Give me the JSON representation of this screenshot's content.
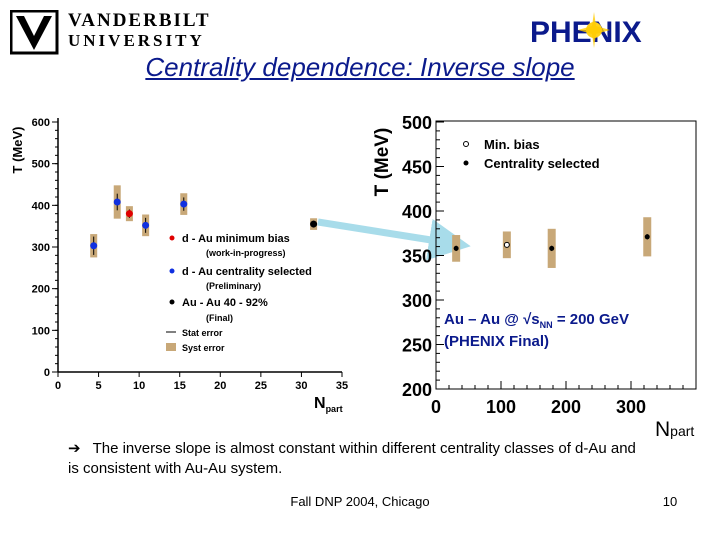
{
  "header": {
    "university_line1": "VANDERBILT",
    "university_line2": "UNIVERSITY",
    "phenix_logo": "PHENIX",
    "title": "Centrality dependence: Inverse slope"
  },
  "colors": {
    "title": "#0b1a8c",
    "dau_minbias": "#e00000",
    "dau_centrality": "#1030e0",
    "auau": "#000000",
    "syst_error": "#c8a878",
    "arrow": "#a8dcea"
  },
  "chart_data": [
    {
      "type": "scatter",
      "ylabel": "T (MeV)",
      "xlabel": "N",
      "xlabel_sub": "part",
      "xlim": [
        0,
        35
      ],
      "ylim": [
        0,
        600
      ],
      "xticks": [
        0,
        5,
        10,
        15,
        20,
        25,
        30,
        35
      ],
      "yticks": [
        0,
        100,
        200,
        300,
        400,
        500,
        600
      ],
      "series": [
        {
          "name": "d - Au minimum bias",
          "note": "(work-in-progress)",
          "color": "#e00000",
          "points": [
            {
              "x": 8.8,
              "y": 380,
              "err": 10,
              "syst": 18
            }
          ]
        },
        {
          "name": "d - Au centrality selected",
          "note": "(Preliminary)",
          "color": "#1030e0",
          "points": [
            {
              "x": 4.4,
              "y": 303,
              "err": 22,
              "syst": 28
            },
            {
              "x": 7.3,
              "y": 408,
              "err": 20,
              "syst": 40
            },
            {
              "x": 10.8,
              "y": 352,
              "err": 18,
              "syst": 26
            },
            {
              "x": 15.5,
              "y": 403,
              "err": 16,
              "syst": 26
            }
          ]
        },
        {
          "name": "Au - Au 40 - 92%",
          "note": "(Final)",
          "color": "#000000",
          "points": [
            {
              "x": 31.5,
              "y": 355,
              "err": 8,
              "syst": 14
            }
          ]
        }
      ],
      "legend_extra": [
        "Stat error",
        "Syst error"
      ],
      "legend_position": "center-right"
    },
    {
      "type": "scatter",
      "ylabel": "T (MeV)",
      "xlabel": "N",
      "xlabel_sub": "part",
      "xlim": [
        0,
        400
      ],
      "ylim": [
        200,
        500
      ],
      "xticks": [
        0,
        100,
        200,
        300
      ],
      "yticks": [
        200,
        250,
        300,
        350,
        400,
        450,
        500
      ],
      "series": [
        {
          "name": "Min. bias",
          "marker": "open-circle",
          "color": "#000000",
          "points": [
            {
              "x": 109,
              "y": 362,
              "err": 3,
              "syst": 15
            }
          ]
        },
        {
          "name": "Centrality selected",
          "marker": "filled-circle",
          "color": "#000000",
          "points": [
            {
              "x": 31,
              "y": 358,
              "err": 3,
              "syst": 15
            },
            {
              "x": 178,
              "y": 358,
              "err": 3,
              "syst": 22
            },
            {
              "x": 325,
              "y": 371,
              "err": 3,
              "syst": 22
            }
          ]
        }
      ],
      "annotation_line1": "Au – Au @ √s",
      "annotation_sub": "NN",
      "annotation_line1_end": " = 200 GeV",
      "annotation_line2": "(PHENIX Final)",
      "legend_position": "top-right"
    }
  ],
  "body": {
    "bullet_arrow": "➔",
    "bullet_text": "The inverse slope is almost constant within different centrality classes of d-Au and is consistent with Au-Au system."
  },
  "footer": {
    "text": "Fall DNP 2004, Chicago",
    "page": "10"
  }
}
